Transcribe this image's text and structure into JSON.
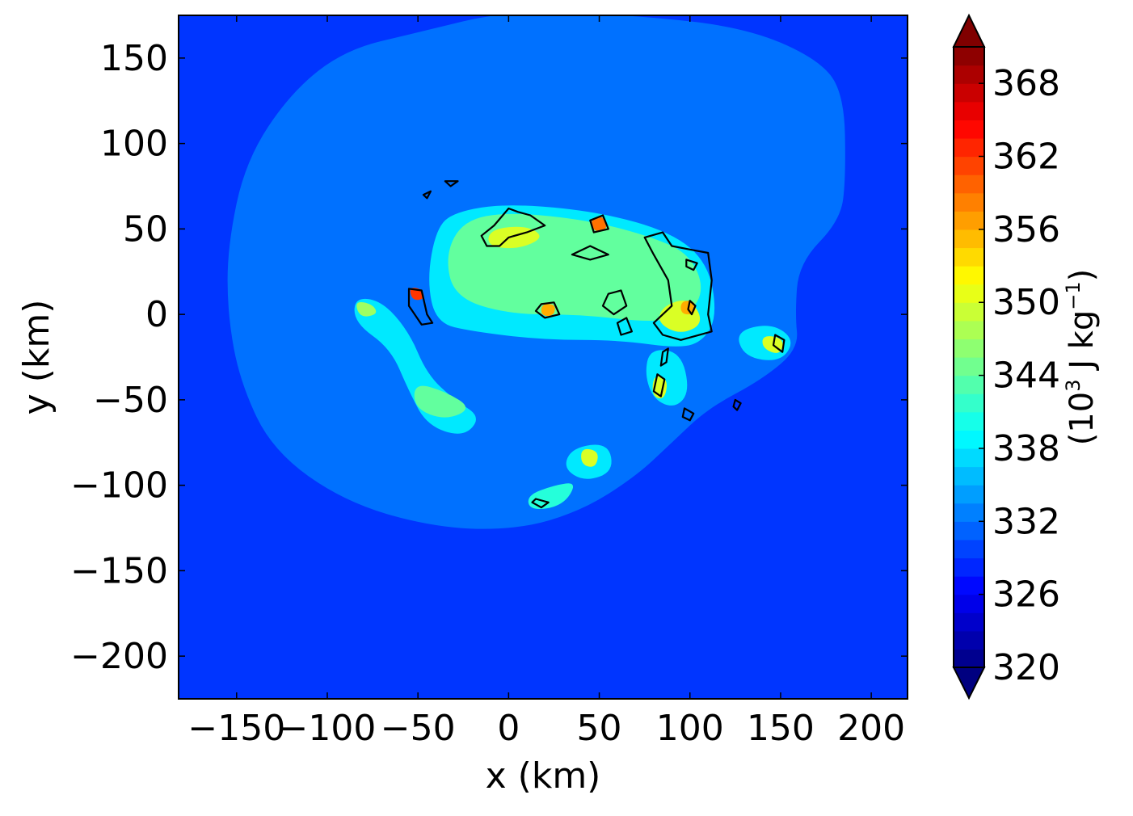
{
  "chart_data": {
    "type": "contour",
    "xlabel": "x (km)",
    "ylabel": "y (km)",
    "xlim": [
      -182,
      220
    ],
    "ylim": [
      -225,
      175
    ],
    "xticks": [
      -150,
      -100,
      -50,
      0,
      50,
      100,
      150,
      200
    ],
    "yticks": [
      -200,
      -150,
      -100,
      -50,
      0,
      50,
      100,
      150
    ],
    "background_level": 329,
    "shaded_regions": [
      {
        "level": 332,
        "points": [
          [
            -50,
            165
          ],
          [
            0,
            178
          ],
          [
            70,
            175
          ],
          [
            130,
            168
          ],
          [
            170,
            150
          ],
          [
            185,
            130
          ],
          [
            186,
            80
          ],
          [
            183,
            55
          ],
          [
            160,
            30
          ],
          [
            158,
            0
          ],
          [
            160,
            -20
          ],
          [
            140,
            -38
          ],
          [
            110,
            -55
          ],
          [
            90,
            -75
          ],
          [
            70,
            -95
          ],
          [
            40,
            -115
          ],
          [
            5,
            -126
          ],
          [
            -40,
            -125
          ],
          [
            -90,
            -110
          ],
          [
            -130,
            -80
          ],
          [
            -148,
            -40
          ],
          [
            -155,
            0
          ],
          [
            -155,
            40
          ],
          [
            -145,
            90
          ],
          [
            -120,
            130
          ],
          [
            -90,
            155
          ]
        ]
      },
      {
        "level": 338,
        "points": [
          [
            -30,
            60
          ],
          [
            0,
            65
          ],
          [
            50,
            60
          ],
          [
            90,
            48
          ],
          [
            110,
            30
          ],
          [
            115,
            0
          ],
          [
            108,
            -15
          ],
          [
            95,
            -20
          ],
          [
            60,
            -15
          ],
          [
            20,
            -15
          ],
          [
            -20,
            -10
          ],
          [
            -40,
            -5
          ],
          [
            -45,
            20
          ],
          [
            -40,
            50
          ]
        ]
      },
      {
        "level": 344,
        "points": [
          [
            -25,
            55
          ],
          [
            0,
            60
          ],
          [
            45,
            55
          ],
          [
            80,
            45
          ],
          [
            100,
            35
          ],
          [
            108,
            15
          ],
          [
            100,
            0
          ],
          [
            80,
            -5
          ],
          [
            40,
            0
          ],
          [
            0,
            0
          ],
          [
            -30,
            10
          ],
          [
            -35,
            35
          ]
        ]
      },
      {
        "level": 338,
        "points": [
          [
            -85,
            10
          ],
          [
            -70,
            8
          ],
          [
            -55,
            -10
          ],
          [
            -45,
            -35
          ],
          [
            -30,
            -50
          ],
          [
            -15,
            -60
          ],
          [
            -25,
            -72
          ],
          [
            -45,
            -65
          ],
          [
            -55,
            -45
          ],
          [
            -65,
            -20
          ],
          [
            -85,
            -5
          ]
        ]
      },
      {
        "level": 344,
        "points": [
          [
            -52,
            -40
          ],
          [
            -35,
            -45
          ],
          [
            -20,
            -55
          ],
          [
            -35,
            -62
          ],
          [
            -52,
            -55
          ]
        ]
      },
      {
        "level": 338,
        "points": [
          [
            125,
            -10
          ],
          [
            145,
            -5
          ],
          [
            158,
            -15
          ],
          [
            150,
            -28
          ],
          [
            130,
            -25
          ]
        ]
      },
      {
        "level": 338,
        "points": [
          [
            78,
            -20
          ],
          [
            95,
            -22
          ],
          [
            100,
            -45
          ],
          [
            92,
            -55
          ],
          [
            80,
            -50
          ],
          [
            75,
            -35
          ]
        ]
      },
      {
        "level": 338,
        "points": [
          [
            35,
            -78
          ],
          [
            55,
            -75
          ],
          [
            58,
            -92
          ],
          [
            42,
            -98
          ],
          [
            30,
            -90
          ]
        ]
      },
      {
        "level": 341,
        "points": [
          [
            10,
            -106
          ],
          [
            25,
            -100
          ],
          [
            38,
            -98
          ],
          [
            30,
            -112
          ],
          [
            12,
            -115
          ]
        ]
      },
      {
        "level": 350,
        "points": [
          [
            -10,
            50
          ],
          [
            10,
            52
          ],
          [
            20,
            45
          ],
          [
            5,
            38
          ],
          [
            -12,
            40
          ]
        ]
      },
      {
        "level": 350,
        "points": [
          [
            85,
            5
          ],
          [
            100,
            10
          ],
          [
            108,
            -5
          ],
          [
            95,
            -12
          ],
          [
            82,
            -5
          ]
        ]
      },
      {
        "level": 347,
        "points": [
          [
            -85,
            8
          ],
          [
            -75,
            6
          ],
          [
            -72,
            0
          ],
          [
            -82,
            -2
          ]
        ]
      },
      {
        "level": 350,
        "points": [
          [
            140,
            -12
          ],
          [
            152,
            -14
          ],
          [
            150,
            -24
          ],
          [
            140,
            -20
          ]
        ]
      },
      {
        "level": 350,
        "points": [
          [
            80,
            -35
          ],
          [
            88,
            -38
          ],
          [
            86,
            -50
          ],
          [
            79,
            -48
          ]
        ]
      },
      {
        "level": 350,
        "points": [
          [
            40,
            -78
          ],
          [
            50,
            -80
          ],
          [
            48,
            -90
          ],
          [
            40,
            -88
          ]
        ]
      },
      {
        "level": 359,
        "points": [
          [
            45,
            56
          ],
          [
            52,
            58
          ],
          [
            55,
            50
          ],
          [
            47,
            48
          ]
        ]
      },
      {
        "level": 362,
        "points": [
          [
            -55,
            16
          ],
          [
            -48,
            15
          ],
          [
            -46,
            9
          ],
          [
            -53,
            8
          ]
        ]
      },
      {
        "level": 356,
        "points": [
          [
            95,
            8
          ],
          [
            103,
            8
          ],
          [
            103,
            0
          ],
          [
            95,
            0
          ]
        ]
      },
      {
        "level": 356,
        "points": [
          [
            18,
            6
          ],
          [
            26,
            6
          ],
          [
            25,
            -1
          ],
          [
            18,
            -1
          ]
        ]
      }
    ],
    "contour_lines": [
      [
        [
          0,
          62
        ],
        [
          5,
          60
        ],
        [
          12,
          58
        ],
        [
          20,
          52
        ],
        [
          10,
          48
        ],
        [
          0,
          45
        ],
        [
          -5,
          40
        ],
        [
          -12,
          40
        ],
        [
          -15,
          46
        ],
        [
          -8,
          52
        ]
      ],
      [
        [
          -55,
          15
        ],
        [
          -48,
          14
        ],
        [
          -45,
          0
        ],
        [
          -42,
          -5
        ],
        [
          -48,
          -6
        ],
        [
          -55,
          5
        ]
      ],
      [
        [
          45,
          55
        ],
        [
          52,
          58
        ],
        [
          55,
          50
        ],
        [
          47,
          48
        ]
      ],
      [
        [
          35,
          35
        ],
        [
          45,
          40
        ],
        [
          55,
          35
        ],
        [
          45,
          32
        ]
      ],
      [
        [
          75,
          45
        ],
        [
          85,
          48
        ],
        [
          90,
          40
        ],
        [
          100,
          38
        ],
        [
          110,
          36
        ],
        [
          112,
          20
        ],
        [
          110,
          0
        ],
        [
          112,
          -10
        ],
        [
          95,
          -15
        ],
        [
          85,
          -12
        ],
        [
          80,
          -5
        ],
        [
          90,
          5
        ],
        [
          88,
          20
        ],
        [
          80,
          35
        ]
      ],
      [
        [
          55,
          12
        ],
        [
          62,
          14
        ],
        [
          65,
          5
        ],
        [
          58,
          0
        ],
        [
          52,
          5
        ]
      ],
      [
        [
          18,
          6
        ],
        [
          25,
          7
        ],
        [
          28,
          0
        ],
        [
          20,
          -2
        ],
        [
          15,
          2
        ]
      ],
      [
        [
          60,
          -5
        ],
        [
          65,
          -2
        ],
        [
          68,
          -10
        ],
        [
          62,
          -12
        ]
      ],
      [
        [
          85,
          -22
        ],
        [
          88,
          -20
        ],
        [
          87,
          -28
        ],
        [
          84,
          -30
        ]
      ],
      [
        [
          82,
          -35
        ],
        [
          86,
          -38
        ],
        [
          84,
          -48
        ],
        [
          80,
          -45
        ]
      ],
      [
        [
          97,
          -55
        ],
        [
          102,
          -58
        ],
        [
          100,
          -62
        ],
        [
          96,
          -60
        ]
      ],
      [
        [
          147,
          -12
        ],
        [
          152,
          -15
        ],
        [
          151,
          -22
        ],
        [
          146,
          -18
        ]
      ],
      [
        [
          125,
          -50
        ],
        [
          128,
          -52
        ],
        [
          126,
          -56
        ],
        [
          124,
          -54
        ]
      ],
      [
        [
          15,
          -108
        ],
        [
          22,
          -110
        ],
        [
          18,
          -113
        ],
        [
          13,
          -110
        ]
      ],
      [
        [
          -47,
          70
        ],
        [
          -43,
          72
        ],
        [
          -45,
          68
        ]
      ],
      [
        [
          -35,
          78
        ],
        [
          -28,
          78
        ],
        [
          -32,
          75
        ]
      ],
      [
        [
          98,
          32
        ],
        [
          104,
          30
        ],
        [
          102,
          26
        ],
        [
          98,
          28
        ]
      ],
      [
        [
          100,
          8
        ],
        [
          103,
          5
        ],
        [
          101,
          0
        ],
        [
          99,
          3
        ]
      ]
    ],
    "colorbar": {
      "label": "(10<sup>3</sup> J kg<sup>-1</sup>)",
      "label_base": "(10",
      "label_exp1": "3",
      "label_unit": " J kg",
      "label_exp2": "−1",
      "label_close": ")",
      "min": 320,
      "max": 371,
      "step": 1.5,
      "ticks": [
        "320",
        "326",
        "332",
        "338",
        "344",
        "350",
        "356",
        "362",
        "368"
      ],
      "tick_values": [
        320,
        326,
        332,
        338,
        344,
        350,
        356,
        362,
        368
      ],
      "extend": "both"
    },
    "colormap": "jet"
  },
  "axis_labels": {
    "x": "x (km)",
    "y": "y (km)"
  },
  "x_tick_labels": [
    "−150",
    "−100",
    "−50",
    "0",
    "50",
    "100",
    "150",
    "200"
  ],
  "y_tick_labels": [
    "−200",
    "−150",
    "−100",
    "−50",
    "0",
    "50",
    "100",
    "150"
  ]
}
